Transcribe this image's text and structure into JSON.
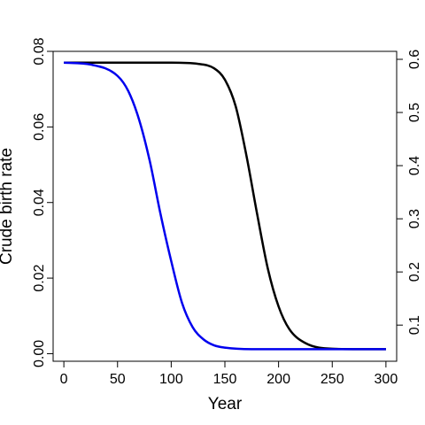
{
  "chart_data": {
    "type": "line",
    "xlabel": "Year",
    "ylabel": "Crude birth rate",
    "xlim": [
      -10,
      310
    ],
    "ylim": [
      -0.002,
      0.08
    ],
    "ylim_right": [
      0.032,
      0.615
    ],
    "x_ticks": [
      0,
      50,
      100,
      150,
      200,
      250,
      300
    ],
    "y_ticks": [
      0.0,
      0.02,
      0.04,
      0.06,
      0.08
    ],
    "y_tick_labels": [
      "0.00",
      "0.02",
      "0.04",
      "0.06",
      "0.08"
    ],
    "y_right_ticks": [
      0.1,
      0.2,
      0.3,
      0.4,
      0.5,
      0.6
    ],
    "y_right_tick_labels": [
      "0.1",
      "0.2",
      "0.3",
      "0.4",
      "0.5",
      "0.6"
    ],
    "grid": false,
    "series": [
      {
        "color": "#000000",
        "axis": "left",
        "x": [
          0,
          25,
          50,
          75,
          100,
          125,
          140,
          150,
          160,
          170,
          180,
          190,
          200,
          210,
          225,
          250,
          275,
          300
        ],
        "values": [
          0.077,
          0.077,
          0.077,
          0.077,
          0.077,
          0.0767,
          0.0755,
          0.0725,
          0.0655,
          0.0525,
          0.037,
          0.0225,
          0.0125,
          0.0065,
          0.0028,
          0.0013,
          0.0012,
          0.0012
        ]
      },
      {
        "color": "#0000ee",
        "axis": "left",
        "x": [
          0,
          25,
          50,
          60,
          70,
          80,
          90,
          100,
          110,
          120,
          130,
          140,
          150,
          175,
          200,
          250,
          300
        ],
        "values": [
          0.077,
          0.0765,
          0.0735,
          0.0695,
          0.062,
          0.051,
          0.037,
          0.0245,
          0.0135,
          0.007,
          0.0038,
          0.0022,
          0.0016,
          0.0012,
          0.0012,
          0.0012,
          0.0012
        ]
      }
    ]
  }
}
